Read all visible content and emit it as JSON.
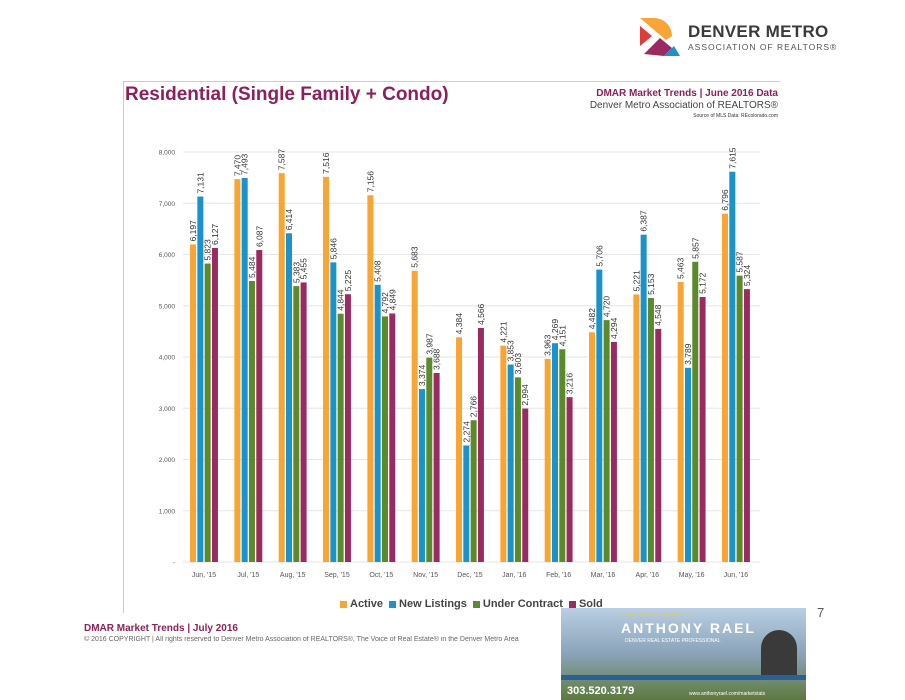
{
  "logo": {
    "line1": "DENVER METRO",
    "line2": "ASSOCIATION OF REALTORS®"
  },
  "header": {
    "line1": "DMAR Market Trends | June 2016 Data",
    "line2": "Denver Metro Association of REALTORS®",
    "line3": "Source of MLS Data: REcolorado.com"
  },
  "footer": {
    "title": "DMAR Market Trends | July 2016",
    "copyright": "© 2016 COPYRIGHT | All rights reserved to Denver Metro Association of REALTORS®, The Voice of Real Estate® in the Denver Metro Area",
    "page": "7"
  },
  "ad": {
    "top": "MARKET REPORT COMPLIMENTS OF",
    "name": "ANTHONY RAEL",
    "subtitle": "DENVER REAL ESTATE PROFESSIONAL",
    "phone": "303.520.3179",
    "url": "www.anthonyrael.com/marketstats"
  },
  "chart_data": {
    "type": "bar",
    "title": "Residential (Single Family + Condo)",
    "categories": [
      "Jun, '15",
      "Jul, '15",
      "Aug, '15",
      "Sep, '15",
      "Oct, '15",
      "Nov, '15",
      "Dec, '15",
      "Jan, '16",
      "Feb, '16",
      "Mar, '16",
      "Apr, '16",
      "May, '16",
      "Jun, '16"
    ],
    "ylim": [
      0,
      8000
    ],
    "yticks": [
      "-",
      "1,000",
      "2,000",
      "3,000",
      "4,000",
      "5,000",
      "6,000",
      "7,000",
      "8,000"
    ],
    "grid": true,
    "legend": "bottom",
    "series": [
      {
        "name": "Active",
        "color": "#f9a533",
        "values": [
          6197,
          7470,
          7587,
          7516,
          7156,
          5683,
          4384,
          4221,
          3963,
          4482,
          5221,
          5463,
          6796
        ]
      },
      {
        "name": "New Listings",
        "color": "#1a92cc",
        "values": [
          7131,
          7493,
          6414,
          5846,
          5408,
          3374,
          2274,
          3853,
          4269,
          5706,
          6387,
          3789,
          7615
        ]
      },
      {
        "name": "Under Contract",
        "color": "#5a8a2a",
        "values": [
          5823,
          5484,
          5383,
          4844,
          4792,
          3987,
          2766,
          3603,
          4151,
          4720,
          5153,
          5857,
          5587
        ]
      },
      {
        "name": "Sold",
        "color": "#9b2a63",
        "values": [
          6127,
          6087,
          5455,
          5225,
          4849,
          3688,
          4566,
          2994,
          3216,
          4294,
          4548,
          5172,
          5324
        ]
      }
    ]
  }
}
